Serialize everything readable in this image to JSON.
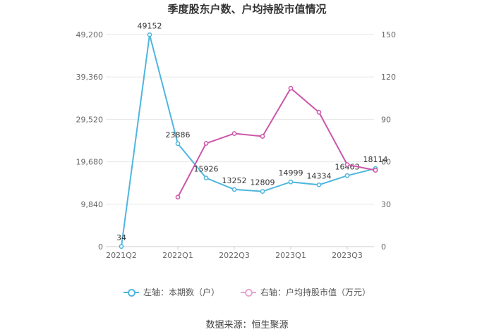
{
  "chart_data": {
    "type": "line",
    "title": "季度股东户数、户均持股市值情况",
    "source": "数据来源：恒生聚源",
    "categories": [
      "2021Q2",
      "2021Q3",
      "2022Q1",
      "2022Q2",
      "2022Q3",
      "2022Q4",
      "2023Q1",
      "2023Q2",
      "2023Q3",
      "2023Q4"
    ],
    "x_tick_labels": [
      "2021Q2",
      "2022Q1",
      "2022Q3",
      "2023Q1",
      "2023Q3"
    ],
    "left_axis": {
      "min": 0,
      "max": 49200,
      "ticks": [
        "0",
        "9,840",
        "19,680",
        "29,520",
        "39,360",
        "49,200"
      ]
    },
    "right_axis": {
      "min": 0,
      "max": 150,
      "ticks": [
        "0",
        "30",
        "60",
        "90",
        "120",
        "150"
      ]
    },
    "grid": true,
    "legend_position": "bottom",
    "series": [
      {
        "name": "左轴：本期数（户）",
        "axis": "left",
        "color": "#4fb6de",
        "values": [
          34,
          49152,
          23886,
          15926,
          13252,
          12809,
          14999,
          14334,
          16463,
          18114
        ],
        "labels": [
          "34",
          "49152",
          "23886",
          "15926",
          "13252",
          "12809",
          "14999",
          "14334",
          "16463",
          "18114"
        ]
      },
      {
        "name": "右轴：户均持股市值（万元）",
        "axis": "right",
        "color": "#cc55aa",
        "values": [
          null,
          null,
          35,
          73,
          80,
          78,
          112,
          95,
          58,
          54
        ]
      }
    ]
  }
}
